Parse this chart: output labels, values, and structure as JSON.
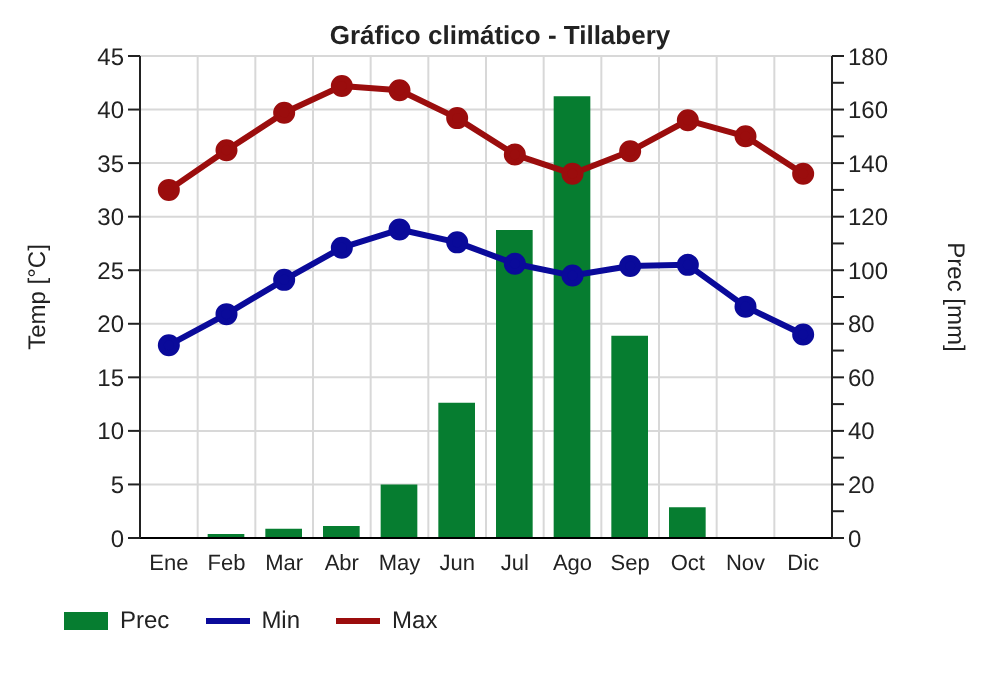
{
  "chart_data": {
    "type": "bar",
    "title": "Gráfico climático - Tillabery",
    "ylabel": "Temp [°C]",
    "y2label": "Prec [mm]",
    "categories": [
      "Ene",
      "Feb",
      "Mar",
      "Abr",
      "May",
      "Jun",
      "Jul",
      "Ago",
      "Sep",
      "Oct",
      "Nov",
      "Dic"
    ],
    "series": [
      {
        "name": "Prec",
        "axis": "y2",
        "color": "#067d30",
        "values": [
          0,
          1.5,
          3.5,
          4.5,
          20,
          50.5,
          115,
          165,
          75.5,
          11.5,
          0,
          0
        ]
      },
      {
        "name": "Min",
        "type": "line",
        "color": "#0a0a9a",
        "values": [
          18,
          20.9,
          24.1,
          27.1,
          28.8,
          27.6,
          25.6,
          24.5,
          25.4,
          25.5,
          21.6,
          19
        ]
      },
      {
        "name": "Max",
        "type": "line",
        "color": "#9b0d0d",
        "values": [
          32.5,
          36.2,
          39.7,
          42.2,
          41.8,
          39.2,
          35.8,
          34,
          36.1,
          39,
          37.5,
          34
        ]
      }
    ],
    "ylim": [
      0,
      45
    ],
    "yticks": [
      0,
      5,
      10,
      15,
      20,
      25,
      30,
      35,
      40,
      45
    ],
    "y2lim": [
      0,
      180
    ],
    "y2ticks": [
      0,
      {
        "value": 10,
        "label": null
      },
      20,
      {
        "value": 30,
        "label": null
      },
      40,
      {
        "value": 50,
        "label": null
      },
      60,
      {
        "value": 70,
        "label": null
      },
      80,
      {
        "value": 90,
        "label": null
      },
      100,
      {
        "value": 110,
        "label": null
      },
      120,
      {
        "value": 130,
        "label": null
      },
      140,
      {
        "value": 150,
        "label": null
      },
      160,
      {
        "value": 170,
        "label": null
      },
      180
    ],
    "grid": true,
    "legend": "bottom left",
    "marker": "circle",
    "line_style": "solid"
  }
}
